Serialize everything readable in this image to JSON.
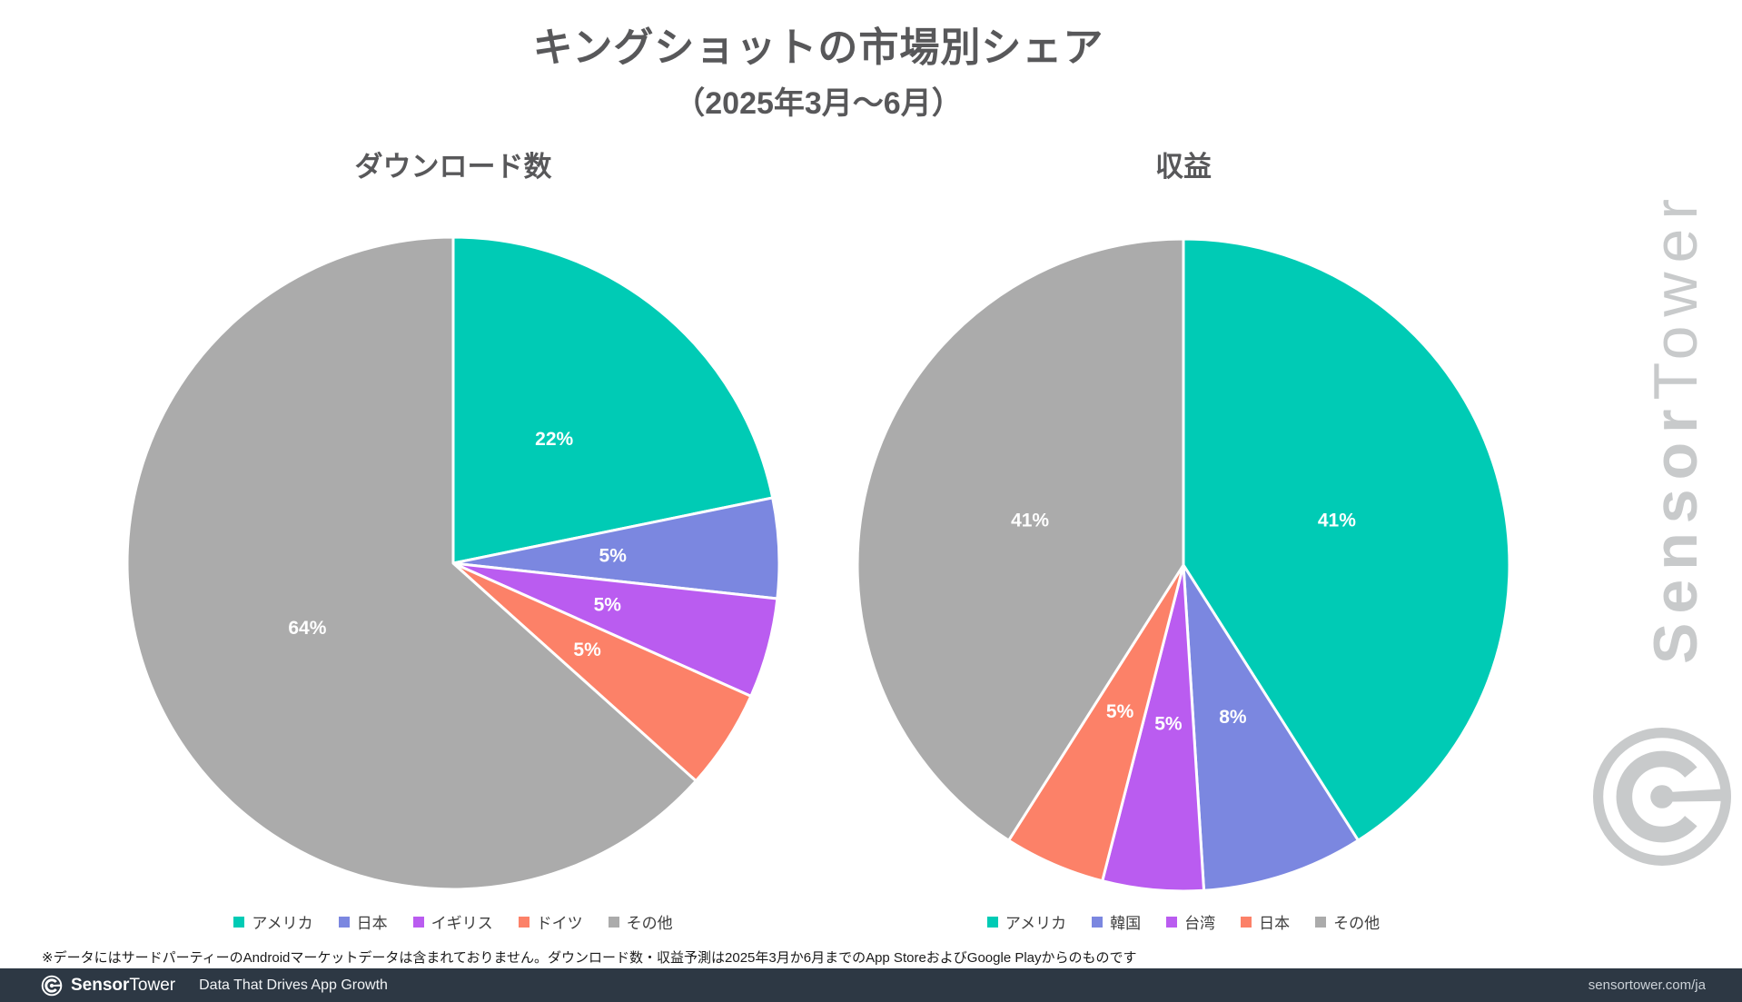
{
  "header": {
    "title": "キングショットの市場別シェア",
    "subtitle": "（2025年3月〜6月）"
  },
  "watermark": {
    "brand_bold": "Sensor",
    "brand_light": "Tower"
  },
  "footnote": "※データにはサードパーティーのAndroidマーケットデータは含まれておりません。ダウンロード数・収益予測は2025年3月か6月までのApp StoreおよびGoogle Playからのものです",
  "footer": {
    "brand_bold": "Sensor",
    "brand_light": "Tower",
    "tagline": "Data That Drives App Growth",
    "url": "sensortower.com/ja",
    "bar_color": "#2d3844"
  },
  "colors": {
    "teal": "#00cbb5",
    "periwinkle": "#7b87e0",
    "purple": "#ba5cf0",
    "salmon": "#fc8168",
    "gray": "#ababab",
    "label_white": "#ffffff",
    "title_gray": "#58585a"
  },
  "chart_data": [
    {
      "type": "pie",
      "title": "ダウンロード数",
      "start_angle_deg": 0,
      "direction": "clockwise",
      "legend_position": "bottom",
      "slices": [
        {
          "label": "アメリカ",
          "value": 22,
          "pct_label": "22%",
          "color": "#00cbb5"
        },
        {
          "label": "日本",
          "value": 5,
          "pct_label": "5%",
          "color": "#7b87e0"
        },
        {
          "label": "イギリス",
          "value": 5,
          "pct_label": "5%",
          "color": "#ba5cf0"
        },
        {
          "label": "ドイツ",
          "value": 5,
          "pct_label": "5%",
          "color": "#fc8168"
        },
        {
          "label": "その他",
          "value": 64,
          "pct_label": "64%",
          "color": "#ababab"
        }
      ]
    },
    {
      "type": "pie",
      "title": "収益",
      "start_angle_deg": 0,
      "direction": "clockwise",
      "legend_position": "bottom",
      "slices": [
        {
          "label": "アメリカ",
          "value": 41,
          "pct_label": "41%",
          "color": "#00cbb5"
        },
        {
          "label": "韓国",
          "value": 8,
          "pct_label": "8%",
          "color": "#7b87e0"
        },
        {
          "label": "台湾",
          "value": 5,
          "pct_label": "5%",
          "color": "#ba5cf0"
        },
        {
          "label": "日本",
          "value": 5,
          "pct_label": "5%",
          "color": "#fc8168"
        },
        {
          "label": "その他",
          "value": 41,
          "pct_label": "41%",
          "color": "#ababab"
        }
      ]
    }
  ]
}
